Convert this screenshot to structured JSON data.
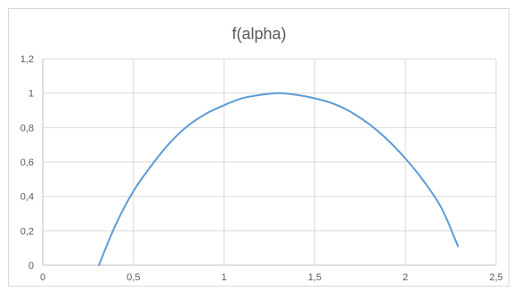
{
  "chart_data": {
    "type": "scatter",
    "title": "f(alpha)",
    "xlabel": "",
    "ylabel": "",
    "xlim": [
      0,
      2.5
    ],
    "ylim": [
      0,
      1.2
    ],
    "x_ticks": [
      0,
      0.5,
      1,
      1.5,
      2,
      2.5
    ],
    "x_tick_labels": [
      "0",
      "0,5",
      "1",
      "1,5",
      "2",
      "2,5"
    ],
    "y_ticks": [
      0,
      0.2,
      0.4,
      0.6,
      0.8,
      1,
      1.2
    ],
    "y_tick_labels": [
      "0",
      "0,2",
      "0,4",
      "0,6",
      "0,8",
      "1",
      "1,2"
    ],
    "grid": true,
    "legend": "none",
    "line_style": "smooth",
    "series": [
      {
        "color": "#5b9bd5",
        "x": [
          0.31,
          0.4,
          0.5,
          0.6,
          0.7,
          0.8,
          0.9,
          1.0,
          1.1,
          1.2,
          1.3,
          1.4,
          1.5,
          1.6,
          1.7,
          1.8,
          1.9,
          2.0,
          2.1,
          2.2,
          2.29
        ],
        "y": [
          0.0,
          0.23,
          0.43,
          0.58,
          0.71,
          0.81,
          0.88,
          0.93,
          0.97,
          0.99,
          1.0,
          0.99,
          0.97,
          0.94,
          0.89,
          0.82,
          0.73,
          0.62,
          0.49,
          0.33,
          0.11
        ]
      }
    ]
  }
}
